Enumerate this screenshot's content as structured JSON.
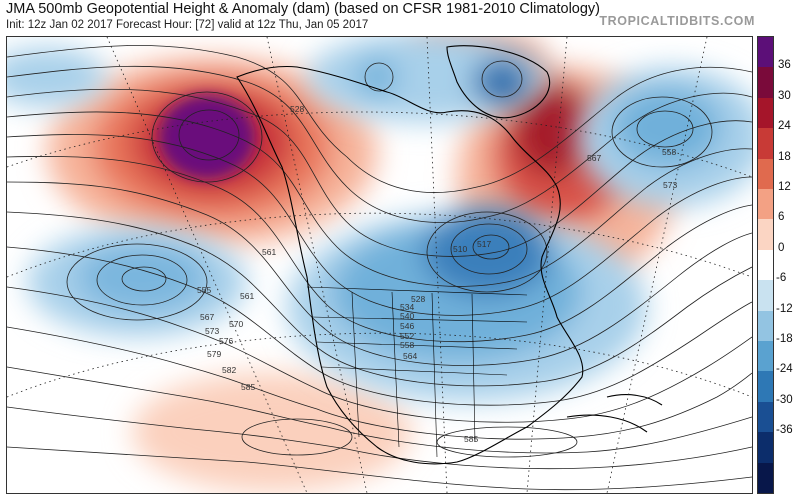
{
  "header": {
    "title": "JMA 500mb Geopotential Height & Anomaly (dam) (based on CFSR 1981-2010 Climatology)",
    "subtitle": "Init: 12z Jan 02 2017   Forecast Hour: [72]   valid at 12z Thu, Jan 05 2017",
    "brand": "TROPICALTIDBITS.COM"
  },
  "colorbar": {
    "ticks": [
      "36",
      "30",
      "24",
      "18",
      "12",
      "6",
      "0",
      "-6",
      "-12",
      "-18",
      "-24",
      "-30",
      "-36"
    ],
    "colors": [
      "#5c0f78",
      "#7a0a3a",
      "#a5152a",
      "#c83a36",
      "#e06a4e",
      "#f3a184",
      "#fbd5c3",
      "#ffffff",
      "#c9e2f0",
      "#93c4e2",
      "#5aa2d0",
      "#2e78b5",
      "#1a4f93",
      "#0c2d6b",
      "#08174a"
    ]
  },
  "map": {
    "contour_labels": [
      "528",
      "561",
      "555",
      "561",
      "567",
      "570",
      "573",
      "576",
      "579",
      "582",
      "585",
      "510",
      "517",
      "528",
      "534",
      "540",
      "546",
      "552",
      "558",
      "564",
      "567",
      "558",
      "573",
      "585"
    ]
  }
}
